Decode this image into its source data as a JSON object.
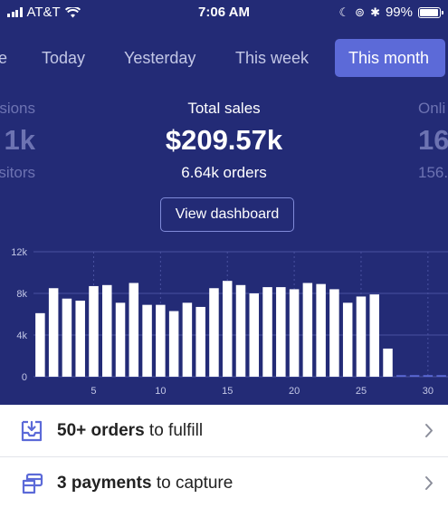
{
  "status_bar": {
    "carrier": "AT&T",
    "time": "7:06 AM",
    "battery_percent": "99%",
    "battery_level": 0.99,
    "icons": [
      "signal-bars",
      "wifi",
      "moon",
      "orientation-lock",
      "bluetooth",
      "battery"
    ]
  },
  "tabs": [
    {
      "label": "e"
    },
    {
      "label": "Today"
    },
    {
      "label": "Yesterday"
    },
    {
      "label": "This week"
    },
    {
      "label": "This month",
      "active": true
    }
  ],
  "metrics": {
    "left": {
      "title": "sions",
      "value": "1k",
      "sub": "sitors"
    },
    "center": {
      "title": "Total sales",
      "value": "$209.57k",
      "sub": "6.64k orders"
    },
    "right": {
      "title": "Onli",
      "value": "16",
      "sub": "156."
    }
  },
  "view_dashboard_label": "View dashboard",
  "chart_data": {
    "type": "bar",
    "x": [
      1,
      2,
      3,
      4,
      5,
      6,
      7,
      8,
      9,
      10,
      11,
      12,
      13,
      14,
      15,
      16,
      17,
      18,
      19,
      20,
      21,
      22,
      23,
      24,
      25,
      26,
      27,
      28,
      29,
      30,
      31
    ],
    "values": [
      6100,
      8500,
      7500,
      7300,
      8700,
      8800,
      7100,
      9000,
      6900,
      6900,
      6300,
      7100,
      6700,
      8500,
      9200,
      8800,
      8000,
      8600,
      8600,
      8400,
      9000,
      8900,
      8400,
      7100,
      7700,
      7900,
      2700,
      150,
      150,
      150,
      150
    ],
    "x_ticks": [
      "5",
      "10",
      "15",
      "20",
      "25",
      "30"
    ],
    "y_ticks": [
      "0",
      "4k",
      "8k",
      "12k"
    ],
    "ylim": [
      0,
      12000
    ],
    "grid": true,
    "colors": {
      "bar": "#ffffff",
      "future_bar": "#5c6ad8",
      "grid": "#4a52a0"
    }
  },
  "list": [
    {
      "icon": "inbox-download-icon",
      "bold": "50+ orders",
      "rest": " to fulfill"
    },
    {
      "icon": "payment-cards-icon",
      "bold": "3 payments",
      "rest": " to capture"
    }
  ],
  "colors": {
    "hero_bg": "#232b76",
    "accent": "#5c6ad8",
    "icon": "#5c6ad8"
  }
}
